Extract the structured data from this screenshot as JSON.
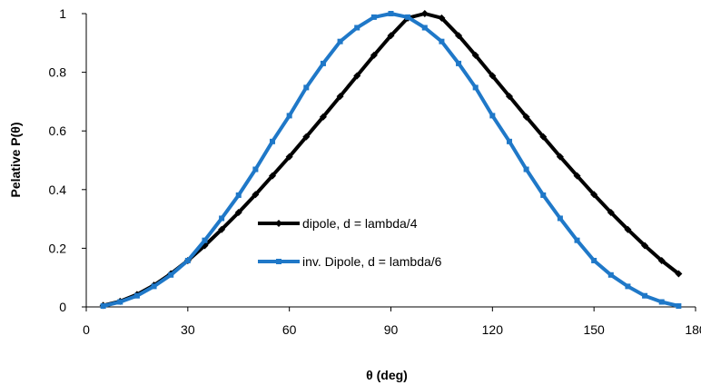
{
  "chart_data": {
    "type": "line",
    "title": "",
    "xlabel": "θ (deg)",
    "ylabel": "Pelative P(θ)",
    "xlim": [
      0,
      180
    ],
    "ylim": [
      0,
      1
    ],
    "xticks": [
      0,
      30,
      60,
      90,
      120,
      150,
      180
    ],
    "yticks": [
      0,
      0.2,
      0.4,
      0.6,
      0.8,
      1
    ],
    "xtick_labels": [
      "0",
      "30",
      "60",
      "90",
      "120",
      "150",
      "180"
    ],
    "ytick_labels": [
      "0",
      "0.2",
      "0.4",
      "0.6",
      "0.8",
      "1"
    ],
    "grid": false,
    "legend_position": "center-left",
    "series": [
      {
        "name": "dipole, d =  lambda/4",
        "color": "#000000",
        "marker": "diamond",
        "x": [
          5,
          10,
          15,
          20,
          25,
          30,
          35,
          40,
          45,
          50,
          55,
          60,
          65,
          70,
          75,
          80,
          85,
          90,
          95,
          100,
          105,
          110,
          115,
          120,
          125,
          130,
          135,
          140,
          145,
          150,
          155,
          160,
          165,
          170,
          175
        ],
        "y": [
          0.005,
          0.019,
          0.042,
          0.074,
          0.113,
          0.158,
          0.209,
          0.264,
          0.322,
          0.383,
          0.447,
          0.512,
          0.58,
          0.648,
          0.718,
          0.788,
          0.858,
          0.925,
          0.985,
          1.0,
          0.985,
          0.925,
          0.858,
          0.788,
          0.718,
          0.648,
          0.58,
          0.512,
          0.447,
          0.383,
          0.322,
          0.264,
          0.209,
          0.158,
          0.113
        ]
      },
      {
        "name": "inv. Dipole, d = lambda/6",
        "color": "#1f78c8",
        "marker": "square",
        "x": [
          5,
          10,
          15,
          20,
          25,
          30,
          35,
          40,
          45,
          50,
          55,
          60,
          65,
          70,
          75,
          80,
          85,
          90,
          95,
          100,
          105,
          110,
          115,
          120,
          125,
          130,
          135,
          140,
          145,
          150,
          155,
          160,
          165,
          170,
          175
        ],
        "y": [
          0.003,
          0.017,
          0.038,
          0.07,
          0.109,
          0.158,
          0.227,
          0.302,
          0.381,
          0.469,
          0.564,
          0.652,
          0.748,
          0.83,
          0.905,
          0.952,
          0.988,
          1.0,
          0.988,
          0.952,
          0.905,
          0.83,
          0.748,
          0.652,
          0.564,
          0.469,
          0.381,
          0.302,
          0.227,
          0.158,
          0.109,
          0.07,
          0.038,
          0.017,
          0.003
        ]
      }
    ]
  }
}
